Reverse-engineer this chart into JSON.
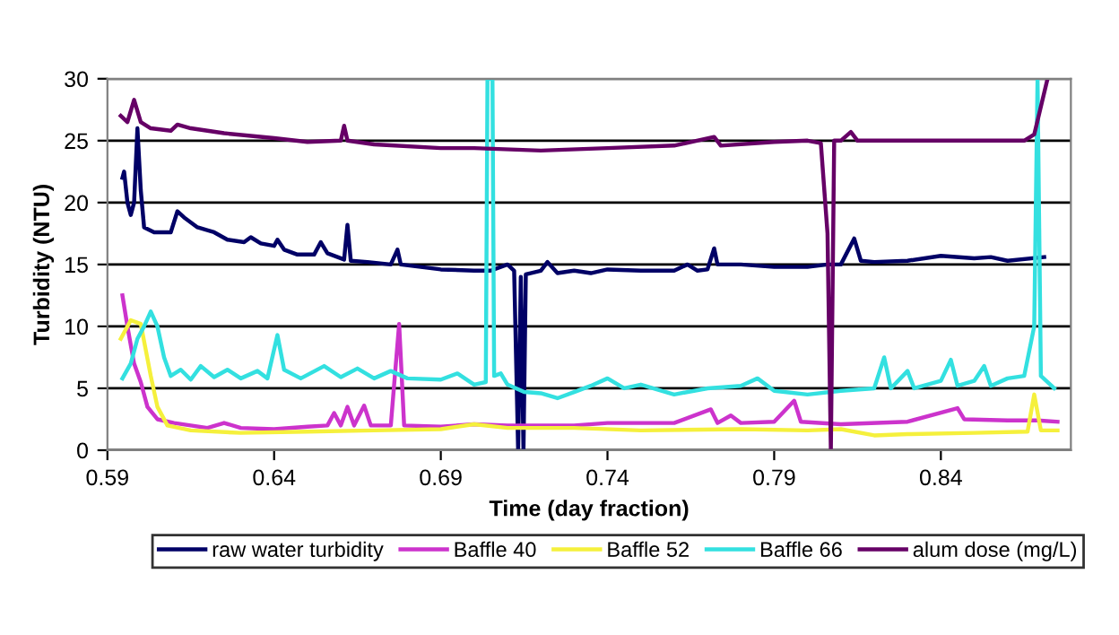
{
  "chart_data": {
    "type": "line",
    "xlabel": "Time (day fraction)",
    "ylabel": "Turbidity (NTU)",
    "xlim": [
      0.59,
      0.879
    ],
    "xticks": [
      0.59,
      0.64,
      0.69,
      0.74,
      0.79,
      0.84
    ],
    "ylim": [
      0,
      30
    ],
    "yticks": [
      0,
      5,
      10,
      15,
      20,
      25,
      30
    ],
    "grid": "y",
    "legend": "bottom",
    "marker": "none",
    "line_style": "solid",
    "series": [
      {
        "name": "raw water turbidity",
        "color": "#000066",
        "x": [
          0.5945,
          0.595,
          0.596,
          0.597,
          0.598,
          0.599,
          0.6,
          0.601,
          0.604,
          0.609,
          0.611,
          0.613,
          0.617,
          0.622,
          0.626,
          0.631,
          0.633,
          0.636,
          0.64,
          0.641,
          0.643,
          0.647,
          0.652,
          0.654,
          0.656,
          0.661,
          0.662,
          0.663,
          0.668,
          0.675,
          0.677,
          0.678,
          0.69,
          0.7,
          0.705,
          0.71,
          0.712,
          0.7132,
          0.714,
          0.7148,
          0.7155,
          0.72,
          0.722,
          0.725,
          0.73,
          0.735,
          0.74,
          0.75,
          0.76,
          0.764,
          0.767,
          0.77,
          0.772,
          0.773,
          0.78,
          0.79,
          0.8,
          0.806,
          0.81,
          0.814,
          0.816,
          0.82,
          0.83,
          0.84,
          0.85,
          0.855,
          0.86,
          0.871
        ],
        "values": [
          22,
          22.5,
          20,
          19,
          20,
          26,
          21,
          18,
          17.6,
          17.6,
          19.3,
          18.8,
          18,
          17.6,
          17,
          16.8,
          17.2,
          16.7,
          16.5,
          17,
          16.2,
          15.8,
          15.8,
          16.8,
          15.9,
          15.4,
          18.2,
          15.3,
          15.2,
          15,
          16.2,
          15,
          14.6,
          14.5,
          14.5,
          15,
          14.5,
          0,
          14,
          0,
          14.2,
          14.5,
          15.2,
          14.3,
          14.5,
          14.3,
          14.6,
          14.5,
          14.5,
          15,
          14.5,
          14.6,
          16.3,
          15,
          15,
          14.8,
          14.8,
          15,
          15,
          17.1,
          15.3,
          15.2,
          15.3,
          15.7,
          15.5,
          15.6,
          15.3,
          15.6
        ]
      },
      {
        "name": "Baffle 40",
        "color": "#cc33cc",
        "x": [
          0.5945,
          0.596,
          0.598,
          0.6,
          0.602,
          0.605,
          0.61,
          0.62,
          0.625,
          0.63,
          0.64,
          0.65,
          0.656,
          0.658,
          0.66,
          0.662,
          0.664,
          0.667,
          0.669,
          0.675,
          0.6775,
          0.679,
          0.69,
          0.7,
          0.71,
          0.72,
          0.73,
          0.74,
          0.76,
          0.771,
          0.773,
          0.777,
          0.78,
          0.79,
          0.796,
          0.798,
          0.81,
          0.83,
          0.845,
          0.847,
          0.86,
          0.869,
          0.875
        ],
        "values": [
          12.5,
          10,
          7,
          5.5,
          3.5,
          2.5,
          2.2,
          1.8,
          2.2,
          1.8,
          1.7,
          1.9,
          2,
          3,
          2,
          3.5,
          2,
          3.6,
          2,
          2,
          10.2,
          2,
          1.9,
          2.1,
          2,
          2,
          2,
          2.2,
          2.2,
          3.3,
          2.2,
          2.8,
          2.2,
          2.3,
          4,
          2.3,
          2.1,
          2.3,
          3.4,
          2.5,
          2.4,
          2.4,
          2.3
        ]
      },
      {
        "name": "Baffle 52",
        "color": "#f5f03c",
        "x": [
          0.594,
          0.597,
          0.6,
          0.603,
          0.605,
          0.608,
          0.615,
          0.63,
          0.65,
          0.67,
          0.69,
          0.7,
          0.71,
          0.73,
          0.75,
          0.78,
          0.8,
          0.81,
          0.82,
          0.83,
          0.85,
          0.866,
          0.868,
          0.87,
          0.875
        ],
        "values": [
          9,
          10.5,
          10.2,
          6,
          3.5,
          2,
          1.6,
          1.4,
          1.5,
          1.6,
          1.7,
          2.1,
          1.8,
          1.8,
          1.6,
          1.7,
          1.6,
          1.7,
          1.2,
          1.3,
          1.4,
          1.5,
          4.5,
          1.6,
          1.6
        ]
      },
      {
        "name": "Baffle 66",
        "color": "#33e0e0",
        "x": [
          0.5945,
          0.597,
          0.599,
          0.601,
          0.603,
          0.605,
          0.607,
          0.609,
          0.612,
          0.615,
          0.618,
          0.622,
          0.626,
          0.63,
          0.635,
          0.638,
          0.641,
          0.643,
          0.648,
          0.655,
          0.66,
          0.665,
          0.67,
          0.675,
          0.68,
          0.69,
          0.695,
          0.7,
          0.7035,
          0.704,
          0.7055,
          0.706,
          0.708,
          0.71,
          0.715,
          0.72,
          0.725,
          0.73,
          0.735,
          0.74,
          0.745,
          0.75,
          0.76,
          0.77,
          0.78,
          0.785,
          0.79,
          0.8,
          0.81,
          0.82,
          0.823,
          0.825,
          0.83,
          0.832,
          0.84,
          0.843,
          0.845,
          0.85,
          0.853,
          0.855,
          0.86,
          0.865,
          0.868,
          0.869,
          0.87,
          0.874
        ],
        "values": [
          5.8,
          7,
          9,
          10,
          11.2,
          10,
          7.5,
          6,
          6.5,
          5.7,
          6.8,
          5.9,
          6.5,
          5.8,
          6.4,
          5.8,
          9.3,
          6.5,
          5.8,
          6.8,
          5.9,
          6.6,
          5.8,
          6.4,
          5.8,
          5.7,
          6.2,
          5.3,
          5.5,
          30,
          30,
          6,
          6.2,
          5.3,
          4.7,
          4.6,
          4.2,
          4.7,
          5.2,
          5.8,
          5,
          5.3,
          4.5,
          5,
          5.2,
          5.8,
          4.8,
          4.5,
          4.8,
          5,
          7.5,
          5,
          6.4,
          5,
          5.6,
          7.3,
          5.2,
          5.6,
          6.8,
          5.2,
          5.8,
          6,
          10,
          30,
          6,
          5
        ]
      },
      {
        "name": "alum dose (mg/L)",
        "color": "#660066",
        "x": [
          0.594,
          0.596,
          0.598,
          0.6,
          0.603,
          0.609,
          0.611,
          0.615,
          0.625,
          0.64,
          0.65,
          0.66,
          0.661,
          0.662,
          0.67,
          0.69,
          0.7,
          0.72,
          0.74,
          0.76,
          0.772,
          0.774,
          0.79,
          0.8,
          0.804,
          0.806,
          0.807,
          0.808,
          0.81,
          0.813,
          0.815,
          0.83,
          0.85,
          0.865,
          0.868,
          0.872
        ],
        "values": [
          27,
          26.5,
          28.3,
          26.5,
          26,
          25.8,
          26.3,
          26,
          25.6,
          25.2,
          24.9,
          25,
          26.2,
          25,
          24.7,
          24.4,
          24.4,
          24.2,
          24.4,
          24.6,
          25.3,
          24.6,
          24.9,
          25,
          24.8,
          17.5,
          0,
          25,
          25,
          25.7,
          25,
          25,
          25,
          25,
          25.5,
          30
        ]
      }
    ]
  }
}
